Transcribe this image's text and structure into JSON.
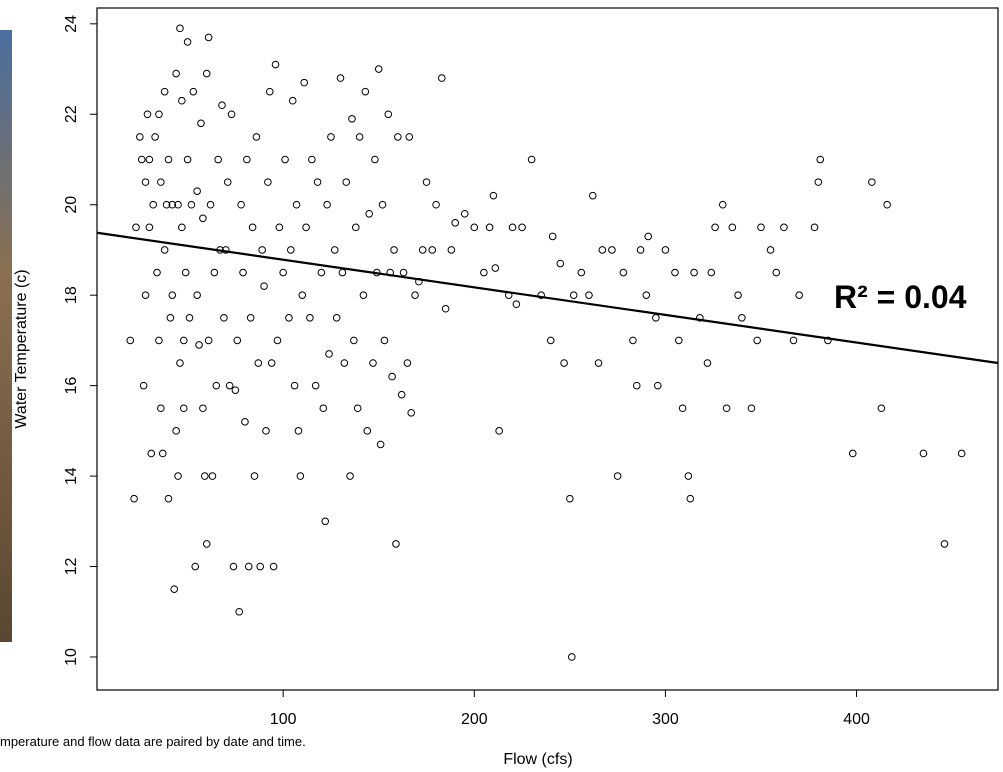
{
  "chart_data": {
    "type": "scatter",
    "x_label": "Flow (cfs)",
    "y_label": "Water Temperature (c)",
    "annotation": "R² = 0.04",
    "note": "mperature and flow data are paired by date and time.",
    "xlim": [
      2.6,
      474
    ],
    "ylim": [
      9.27,
      24.35
    ],
    "xticks": [
      100,
      200,
      300,
      400
    ],
    "yticks": [
      10,
      12,
      14,
      16,
      18,
      20,
      22,
      24
    ],
    "color": "#000000",
    "regression_line": {
      "x": [
        2.6,
        474
      ],
      "y": [
        19.38,
        16.5
      ]
    },
    "x": [
      20,
      22,
      23,
      25,
      26,
      27,
      28,
      28,
      29,
      30,
      30,
      31,
      32,
      33,
      34,
      35,
      35,
      36,
      36,
      37,
      38,
      38,
      39,
      40,
      40,
      41,
      42,
      42,
      43,
      44,
      44,
      45,
      45,
      46,
      46,
      47,
      47,
      48,
      48,
      49,
      50,
      50,
      51,
      52,
      53,
      54,
      55,
      55,
      56,
      57,
      58,
      58,
      59,
      60,
      60,
      61,
      61,
      62,
      63,
      64,
      65,
      66,
      67,
      68,
      69,
      70,
      71,
      72,
      73,
      74,
      75,
      76,
      77,
      78,
      79,
      80,
      81,
      82,
      83,
      84,
      85,
      86,
      87,
      88,
      89,
      90,
      91,
      92,
      93,
      94,
      95,
      96,
      97,
      98,
      100,
      101,
      103,
      104,
      105,
      106,
      107,
      108,
      109,
      110,
      111,
      112,
      114,
      115,
      117,
      118,
      120,
      121,
      122,
      123,
      124,
      125,
      127,
      128,
      130,
      131,
      132,
      133,
      135,
      136,
      137,
      138,
      139,
      140,
      142,
      143,
      144,
      145,
      147,
      148,
      149,
      150,
      151,
      152,
      153,
      155,
      156,
      157,
      158,
      159,
      160,
      162,
      163,
      165,
      166,
      167,
      169,
      171,
      173,
      175,
      178,
      180,
      183,
      185,
      188,
      190,
      195,
      200,
      205,
      208,
      210,
      211,
      213,
      218,
      220,
      222,
      225,
      230,
      235,
      240,
      241,
      245,
      247,
      250,
      251,
      252,
      256,
      260,
      262,
      265,
      267,
      272,
      275,
      278,
      283,
      285,
      287,
      290,
      291,
      295,
      296,
      300,
      305,
      307,
      309,
      312,
      313,
      315,
      318,
      322,
      324,
      326,
      330,
      332,
      335,
      338,
      340,
      345,
      348,
      350,
      355,
      358,
      362,
      367,
      370,
      378,
      380,
      381,
      385,
      398,
      408,
      413,
      416,
      435,
      446,
      455
    ],
    "values": [
      17,
      13.5,
      19.5,
      21.5,
      21,
      16,
      20.5,
      18,
      22,
      19.5,
      21,
      14.5,
      20,
      21.5,
      18.5,
      17,
      22,
      15.5,
      20.5,
      14.5,
      19,
      22.5,
      20,
      13.5,
      21,
      17.5,
      18,
      20,
      11.5,
      15,
      22.9,
      14,
      20,
      16.5,
      23.9,
      19.5,
      22.3,
      15.5,
      17,
      18.5,
      21,
      23.6,
      17.5,
      20,
      22.5,
      12,
      18,
      20.3,
      16.9,
      21.8,
      15.5,
      19.7,
      14,
      12.5,
      22.9,
      17,
      23.7,
      20,
      14,
      18.5,
      16,
      21,
      19,
      22.2,
      17.5,
      19,
      20.5,
      16,
      22,
      12,
      15.9,
      17,
      11,
      20,
      18.5,
      15.2,
      21,
      12,
      17.5,
      19.5,
      14,
      21.5,
      16.5,
      12,
      19,
      18.2,
      15,
      20.5,
      22.5,
      16.5,
      12,
      23.1,
      17,
      19.5,
      18.5,
      21,
      17.5,
      19,
      22.3,
      16,
      20,
      15,
      14,
      18,
      22.7,
      19.5,
      17.5,
      21,
      16,
      20.5,
      18.5,
      15.5,
      13,
      20,
      16.7,
      21.5,
      19,
      17.5,
      22.8,
      18.5,
      16.5,
      20.5,
      14,
      21.9,
      17,
      19.5,
      15.5,
      21.5,
      18,
      22.5,
      15,
      19.8,
      16.5,
      21,
      18.5,
      23,
      14.7,
      20,
      17,
      22,
      18.5,
      16.2,
      19,
      12.5,
      21.5,
      15.8,
      18.5,
      16.5,
      21.5,
      15.4,
      18,
      18.3,
      19,
      20.5,
      19,
      20,
      22.8,
      17.7,
      19,
      19.6,
      19.8,
      19.5,
      18.5,
      19.5,
      20.2,
      18.6,
      15,
      18,
      19.5,
      17.8,
      19.5,
      21,
      18,
      17,
      19.3,
      18.7,
      16.5,
      13.5,
      10,
      18,
      18.5,
      18,
      20.2,
      16.5,
      19,
      19,
      14,
      18.5,
      17,
      16,
      19,
      18,
      19.3,
      17.5,
      16,
      19,
      18.5,
      17,
      15.5,
      14,
      13.5,
      18.5,
      17.5,
      16.5,
      18.5,
      19.5,
      20,
      15.5,
      19.5,
      18,
      17.5,
      15.5,
      17,
      19.5,
      19,
      18.5,
      19.5,
      17,
      18,
      19.5,
      20.5,
      21,
      17,
      14.5,
      20.5,
      15.5,
      20,
      14.5,
      12.5,
      14.5
    ]
  }
}
